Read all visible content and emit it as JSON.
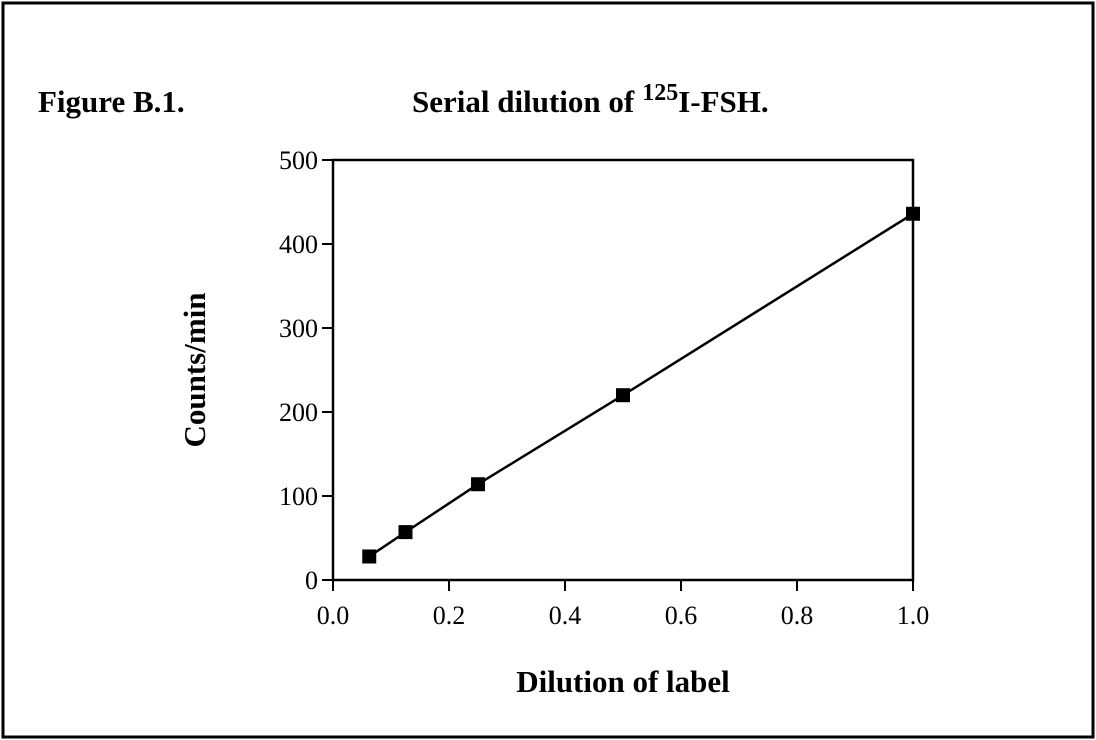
{
  "chart_data": {
    "type": "line",
    "figure_label": "Figure B.1.",
    "title": {
      "before": "Serial dilution of",
      "superscript": "125",
      "after": "I-FSH."
    },
    "xlabel": "Dilution of label",
    "ylabel": "Counts/min",
    "x": [
      0.0625,
      0.125,
      0.25,
      0.5,
      1.0
    ],
    "series": [
      {
        "color": "#000000",
        "marker": "square",
        "values": [
          28,
          57,
          114,
          220,
          436
        ]
      }
    ],
    "xlim": [
      0,
      1
    ],
    "ylim": [
      0,
      500
    ],
    "xticks": [
      {
        "value": 0,
        "label": "0.0"
      },
      0.2,
      0.4,
      0.6,
      0.8,
      {
        "value": 1,
        "label": "1.0"
      }
    ],
    "yticks": [
      0,
      100,
      200,
      300,
      400,
      500
    ],
    "grid": false
  }
}
